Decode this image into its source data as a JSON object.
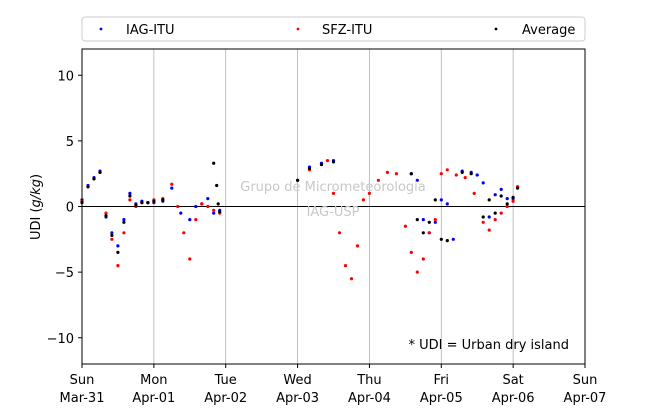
{
  "chart_data": {
    "type": "scatter",
    "title": "",
    "ylabel_prefix": "UDI (",
    "ylabel_unit": "g/kg",
    "ylabel_suffix": ")",
    "ylim": [
      -12,
      12
    ],
    "yticks": [
      -10,
      -5,
      0,
      5,
      10
    ],
    "xlim": [
      0,
      7
    ],
    "grid": "vertical",
    "legend_placement": "top",
    "x_ticks": [
      {
        "day": 0,
        "line1": "Sun",
        "line2": "Mar-31"
      },
      {
        "day": 1,
        "line1": "Mon",
        "line2": "Apr-01"
      },
      {
        "day": 2,
        "line1": "Tue",
        "line2": "Apr-02"
      },
      {
        "day": 3,
        "line1": "Wed",
        "line2": "Apr-03"
      },
      {
        "day": 4,
        "line1": "Thu",
        "line2": "Apr-04"
      },
      {
        "day": 5,
        "line1": "Fri",
        "line2": "Apr-05"
      },
      {
        "day": 6,
        "line1": "Sat",
        "line2": "Apr-06"
      },
      {
        "day": 7,
        "line1": "Sun",
        "line2": "Apr-07"
      }
    ],
    "annotation": "* UDI = Urban dry island",
    "watermark": [
      "Grupo de Micrometeorologia",
      "IAG-USP"
    ],
    "series": [
      {
        "name": "IAG-ITU",
        "color": "#0000ff",
        "x": [
          "Mar-31 00:00",
          "Mar-31 02:00",
          "Mar-31 04:00",
          "Mar-31 06:00",
          "Mar-31 08:00",
          "Mar-31 10:00",
          "Mar-31 12:00",
          "Mar-31 14:00",
          "Mar-31 16:00",
          "Mar-31 18:00",
          "Mar-31 20:00",
          "Mar-31 22:00",
          "Apr-01 00:00",
          "Apr-01 03:00",
          "Apr-01 06:00",
          "Apr-01 09:00",
          "Apr-01 12:00",
          "Apr-01 14:00",
          "Apr-01 16:00",
          "Apr-01 18:00",
          "Apr-01 20:00",
          "Apr-01 22:00",
          "Apr-03 00:00",
          "Apr-03 04:00",
          "Apr-03 08:00",
          "Apr-03 12:00",
          "Apr-04 14:00",
          "Apr-04 16:00",
          "Apr-04 18:00",
          "Apr-04 20:00",
          "Apr-04 22:00",
          "Apr-05 00:00",
          "Apr-05 02:00",
          "Apr-05 04:00",
          "Apr-05 07:00",
          "Apr-05 10:00",
          "Apr-05 12:00",
          "Apr-05 14:00",
          "Apr-05 16:00",
          "Apr-05 18:00",
          "Apr-05 20:00",
          "Apr-05 22:00",
          "Apr-06 00:00",
          "Apr-06 01:30"
        ],
        "y": [
          0.5,
          1.6,
          2.2,
          2.7,
          -0.8,
          -2.0,
          -3.0,
          -1.0,
          1.0,
          0.2,
          0.4,
          0.3,
          0.3,
          0.4,
          1.4,
          -0.5,
          -1.0,
          0.0,
          0.2,
          0.6,
          -0.5,
          -0.3,
          2.0,
          3.0,
          3.3,
          3.5,
          2.5,
          2.0,
          -1.0,
          -2.0,
          -1.2,
          0.5,
          0.2,
          -2.5,
          2.7,
          2.6,
          2.4,
          1.8,
          -0.8,
          0.9,
          1.3,
          0.6,
          0.6,
          1.5
        ]
      },
      {
        "name": "SFZ-ITU",
        "color": "#ff0000",
        "x": [
          "Mar-31 00:00",
          "Mar-31 02:00",
          "Mar-31 04:00",
          "Mar-31 06:00",
          "Mar-31 08:00",
          "Mar-31 10:00",
          "Mar-31 12:00",
          "Mar-31 14:00",
          "Mar-31 16:00",
          "Mar-31 18:00",
          "Mar-31 20:00",
          "Mar-31 22:00",
          "Apr-01 00:00",
          "Apr-01 03:00",
          "Apr-01 06:00",
          "Apr-01 08:00",
          "Apr-01 10:00",
          "Apr-01 12:00",
          "Apr-01 14:00",
          "Apr-01 16:00",
          "Apr-01 18:00",
          "Apr-01 20:00",
          "Apr-01 22:00",
          "Apr-03 00:00",
          "Apr-03 04:00",
          "Apr-03 08:00",
          "Apr-03 10:00",
          "Apr-03 12:00",
          "Apr-03 14:00",
          "Apr-03 16:00",
          "Apr-03 18:00",
          "Apr-03 20:00",
          "Apr-03 22:00",
          "Apr-04 00:00",
          "Apr-04 03:00",
          "Apr-04 06:00",
          "Apr-04 09:00",
          "Apr-04 12:00",
          "Apr-04 14:00",
          "Apr-04 16:00",
          "Apr-04 18:00",
          "Apr-04 20:00",
          "Apr-04 22:00",
          "Apr-05 00:00",
          "Apr-05 02:00",
          "Apr-05 05:00",
          "Apr-05 08:00",
          "Apr-05 11:00",
          "Apr-05 14:00",
          "Apr-05 16:00",
          "Apr-05 18:00",
          "Apr-05 20:00",
          "Apr-05 22:00",
          "Apr-06 00:00",
          "Apr-06 01:30"
        ],
        "y": [
          0.4,
          1.5,
          2.1,
          2.6,
          -0.5,
          -2.5,
          -4.5,
          -2.0,
          0.5,
          0.0,
          0.3,
          0.3,
          0.5,
          0.6,
          1.7,
          0.0,
          -2.0,
          -4.0,
          -1.0,
          0.2,
          0.0,
          -0.3,
          -0.5,
          2.0,
          2.8,
          3.2,
          3.5,
          1.0,
          -2.0,
          -4.5,
          -5.5,
          -3.0,
          0.5,
          1.0,
          2.0,
          2.6,
          2.5,
          -1.5,
          -3.5,
          -5.0,
          -4.0,
          -2.0,
          -1.0,
          2.5,
          2.8,
          2.4,
          2.2,
          1.0,
          -1.2,
          -1.8,
          -1.0,
          -0.5,
          0.0,
          0.4,
          1.5
        ]
      },
      {
        "name": "Average",
        "color": "#000000",
        "x": [
          "Mar-31 00:00",
          "Mar-31 02:00",
          "Mar-31 04:00",
          "Mar-31 06:00",
          "Mar-31 08:00",
          "Mar-31 10:00",
          "Mar-31 12:00",
          "Mar-31 14:00",
          "Mar-31 16:00",
          "Mar-31 18:00",
          "Mar-31 20:00",
          "Mar-31 22:00",
          "Apr-01 00:00",
          "Apr-01 03:00",
          "Apr-01 20:00",
          "Apr-01 21:00",
          "Apr-01 21:30",
          "Apr-01 22:00",
          "Apr-03 00:00",
          "Apr-03 04:00",
          "Apr-03 08:00",
          "Apr-03 12:00",
          "Apr-04 14:00",
          "Apr-04 16:00",
          "Apr-04 18:00",
          "Apr-04 20:00",
          "Apr-04 22:00",
          "Apr-05 00:00",
          "Apr-05 02:00",
          "Apr-05 07:00",
          "Apr-05 10:00",
          "Apr-05 14:00",
          "Apr-05 16:00",
          "Apr-05 18:00",
          "Apr-05 20:00",
          "Apr-05 22:00",
          "Apr-06 00:00",
          "Apr-06 01:30"
        ],
        "y": [
          0.3,
          1.5,
          2.1,
          2.6,
          -0.7,
          -2.2,
          -3.5,
          -1.2,
          0.8,
          0.1,
          0.3,
          0.3,
          0.4,
          0.5,
          3.3,
          1.6,
          0.2,
          -0.4,
          2.0,
          2.9,
          3.2,
          3.4,
          2.5,
          -1.0,
          -2.0,
          -1.2,
          0.5,
          -2.5,
          -2.6,
          2.6,
          2.5,
          -0.8,
          0.5,
          -0.5,
          0.8,
          0.2,
          0.7,
          1.4
        ]
      }
    ]
  }
}
